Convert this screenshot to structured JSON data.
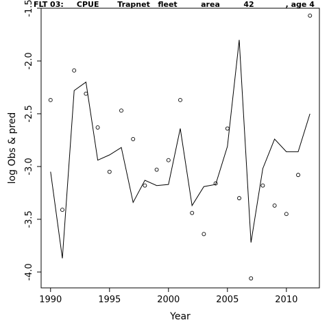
{
  "chart_data": {
    "type": "line",
    "title": "FLT 03:     CPUE       Trapnet   fleet         area         42            , age 4",
    "xlabel": "Year",
    "ylabel": "log Obs & pred",
    "xlim": [
      1989.2,
      2012.8
    ],
    "ylim": [
      -4.15,
      -1.5
    ],
    "x_ticks": [
      1990,
      1995,
      2000,
      2005,
      2010
    ],
    "x_tick_labels": [
      "1990",
      "1995",
      "2000",
      "2005",
      "2010"
    ],
    "y_ticks": [
      -4.0,
      -3.5,
      -3.0,
      -2.5,
      -2.0,
      -1.5
    ],
    "y_tick_labels": [
      "-4.0",
      "-3.5",
      "-3.0",
      "-2.5",
      "-2.0",
      "-1.5"
    ],
    "grid": false,
    "legend": "none",
    "line_color": "#000000",
    "point_color": "#000000",
    "series": [
      {
        "kind": "points",
        "x": [
          1990,
          1991,
          1992,
          1993,
          1994,
          1995,
          1996,
          1997,
          1998,
          1999,
          2000,
          2001,
          2002,
          2003,
          2004,
          2005,
          2006,
          2007,
          2008,
          2009,
          2010,
          2011,
          2012
        ],
        "y": [
          -2.37,
          -3.41,
          -2.09,
          -2.31,
          -2.63,
          -3.05,
          -2.47,
          -2.74,
          -3.18,
          -3.03,
          -2.94,
          -2.37,
          -3.44,
          -3.64,
          -3.16,
          -2.64,
          -3.3,
          -4.06,
          -3.18,
          -3.37,
          -3.45,
          -3.08,
          -1.57
        ]
      },
      {
        "kind": "line",
        "x": [
          1990,
          1991,
          1992,
          1993,
          1994,
          1995,
          1996,
          1997,
          1998,
          1999,
          2000,
          2001,
          2002,
          2003,
          2004,
          2005,
          2006,
          2007,
          2008,
          2009,
          2010,
          2011,
          2012
        ],
        "y": [
          -3.05,
          -3.87,
          -2.28,
          -2.2,
          -2.94,
          -2.89,
          -2.82,
          -3.34,
          -3.13,
          -3.18,
          -3.17,
          -2.64,
          -3.37,
          -3.19,
          -3.17,
          -2.81,
          -1.8,
          -3.72,
          -3.02,
          -2.74,
          -2.86,
          -2.86,
          -2.5
        ]
      }
    ]
  }
}
